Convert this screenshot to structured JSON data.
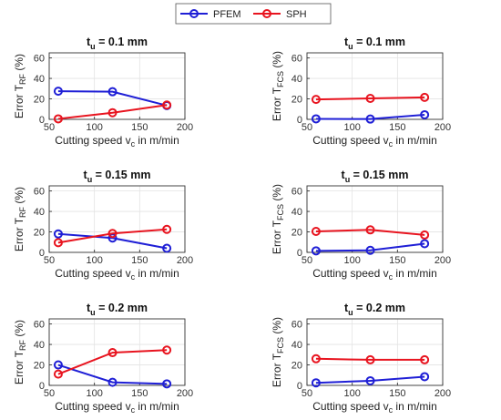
{
  "legend": {
    "placement": "top-center",
    "entries": [
      {
        "name": "PFEM",
        "color": "#1f1fd6"
      },
      {
        "name": "SPH",
        "color": "#e8141f"
      }
    ]
  },
  "chart_data": [
    {
      "type": "line",
      "title": "t_u = 0.1 mm",
      "title_main": "t",
      "title_sub": "u",
      "title_rest": " = 0.1 mm",
      "xlabel": "Cutting speed v_c in m/min",
      "xlabel_main": "Cutting speed v",
      "xlabel_sub": "c",
      "xlabel_rest": " in m/min",
      "ylabel": "Error T_RF (%)",
      "ylabel_main": "Error T",
      "ylabel_sub": "RF",
      "ylabel_rest": " (%)",
      "xlim": [
        50,
        200
      ],
      "ylim": [
        0,
        65
      ],
      "xticks": [
        50,
        100,
        150,
        200
      ],
      "yticks": [
        0,
        20,
        40,
        60
      ],
      "grid": true,
      "x": [
        60,
        120,
        180
      ],
      "series": [
        {
          "name": "PFEM",
          "color": "#1f1fd6",
          "values": [
            27.5,
            27,
            13.5
          ]
        },
        {
          "name": "SPH",
          "color": "#e8141f",
          "values": [
            0.5,
            6.5,
            14
          ]
        }
      ]
    },
    {
      "type": "line",
      "title": "t_u = 0.1 mm",
      "title_main": "t",
      "title_sub": "u",
      "title_rest": " = 0.1 mm",
      "xlabel": "Cutting speed v_c in m/min",
      "xlabel_main": "Cutting speed v",
      "xlabel_sub": "c",
      "xlabel_rest": " in m/min",
      "ylabel": "Error T_FCS (%)",
      "ylabel_main": "Error T",
      "ylabel_sub": "FCS",
      "ylabel_rest": " (%)",
      "xlim": [
        50,
        200
      ],
      "ylim": [
        0,
        65
      ],
      "xticks": [
        50,
        100,
        150,
        200
      ],
      "yticks": [
        0,
        20,
        40,
        60
      ],
      "grid": true,
      "x": [
        60,
        120,
        180
      ],
      "series": [
        {
          "name": "PFEM",
          "color": "#1f1fd6",
          "values": [
            0.5,
            0.3,
            4.5
          ]
        },
        {
          "name": "SPH",
          "color": "#e8141f",
          "values": [
            19.5,
            20.5,
            21.5
          ]
        }
      ]
    },
    {
      "type": "line",
      "title": "t_u = 0.15 mm",
      "title_main": "t",
      "title_sub": "u",
      "title_rest": " = 0.15 mm",
      "xlabel": "Cutting speed v_c in m/min",
      "xlabel_main": "Cutting speed v",
      "xlabel_sub": "c",
      "xlabel_rest": " in m/min",
      "ylabel": "Error T_RF (%)",
      "ylabel_main": "Error T",
      "ylabel_sub": "RF",
      "ylabel_rest": " (%)",
      "xlim": [
        50,
        200
      ],
      "ylim": [
        0,
        65
      ],
      "xticks": [
        50,
        100,
        150,
        200
      ],
      "yticks": [
        0,
        20,
        40,
        60
      ],
      "grid": true,
      "x": [
        60,
        120,
        180
      ],
      "series": [
        {
          "name": "PFEM",
          "color": "#1f1fd6",
          "values": [
            18,
            14,
            4
          ]
        },
        {
          "name": "SPH",
          "color": "#e8141f",
          "values": [
            9.5,
            18.5,
            22.5
          ]
        }
      ]
    },
    {
      "type": "line",
      "title": "t_u = 0.15 mm",
      "title_main": "t",
      "title_sub": "u",
      "title_rest": " = 0.15 mm",
      "xlabel": "Cutting speed v_c in m/min",
      "xlabel_main": "Cutting speed v",
      "xlabel_sub": "c",
      "xlabel_rest": " in m/min",
      "ylabel": "Error T_FCS (%)",
      "ylabel_main": "Error T",
      "ylabel_sub": "FCS",
      "ylabel_rest": " (%)",
      "xlim": [
        50,
        200
      ],
      "ylim": [
        0,
        65
      ],
      "xticks": [
        50,
        100,
        150,
        200
      ],
      "yticks": [
        0,
        20,
        40,
        60
      ],
      "grid": true,
      "x": [
        60,
        120,
        180
      ],
      "series": [
        {
          "name": "PFEM",
          "color": "#1f1fd6",
          "values": [
            1.5,
            2,
            8.5
          ]
        },
        {
          "name": "SPH",
          "color": "#e8141f",
          "values": [
            20.5,
            22,
            17
          ]
        }
      ]
    },
    {
      "type": "line",
      "title": "t_u = 0.2 mm",
      "title_main": "t",
      "title_sub": "u",
      "title_rest": " = 0.2 mm",
      "xlabel": "Cutting speed v_c in m/min",
      "xlabel_main": "Cutting speed v",
      "xlabel_sub": "c",
      "xlabel_rest": " in m/min",
      "ylabel": "Error T_RF (%)",
      "ylabel_main": "Error T",
      "ylabel_sub": "RF",
      "ylabel_rest": " (%)",
      "xlim": [
        50,
        200
      ],
      "ylim": [
        0,
        65
      ],
      "xticks": [
        50,
        100,
        150,
        200
      ],
      "yticks": [
        0,
        20,
        40,
        60
      ],
      "grid": true,
      "x": [
        60,
        120,
        180
      ],
      "series": [
        {
          "name": "PFEM",
          "color": "#1f1fd6",
          "values": [
            20,
            3,
            1.5
          ]
        },
        {
          "name": "SPH",
          "color": "#e8141f",
          "values": [
            11,
            32,
            34.5
          ]
        }
      ]
    },
    {
      "type": "line",
      "title": "t_u = 0.2 mm",
      "title_main": "t",
      "title_sub": "u",
      "title_rest": " = 0.2 mm",
      "xlabel": "Cutting speed v_c in m/min",
      "xlabel_main": "Cutting speed v",
      "xlabel_sub": "c",
      "xlabel_rest": " in m/min",
      "ylabel": "Error T_FCS (%)",
      "ylabel_main": "Error T",
      "ylabel_sub": "FCS",
      "ylabel_rest": " (%)",
      "xlim": [
        50,
        200
      ],
      "ylim": [
        0,
        65
      ],
      "xticks": [
        50,
        100,
        150,
        200
      ],
      "yticks": [
        0,
        20,
        40,
        60
      ],
      "grid": true,
      "x": [
        60,
        120,
        180
      ],
      "series": [
        {
          "name": "PFEM",
          "color": "#1f1fd6",
          "values": [
            2.5,
            4.5,
            8.5
          ]
        },
        {
          "name": "SPH",
          "color": "#e8141f",
          "values": [
            26,
            25,
            25
          ]
        }
      ]
    }
  ]
}
